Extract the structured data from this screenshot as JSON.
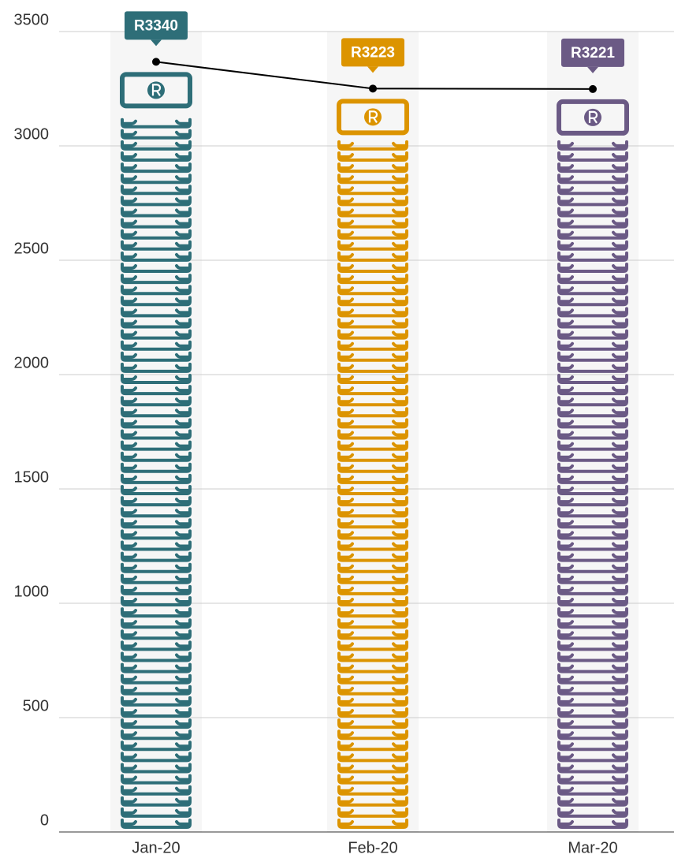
{
  "chart_data": {
    "type": "pictorial-bar",
    "categories": [
      "Jan-20",
      "Feb-20",
      "Mar-20"
    ],
    "values": [
      3340,
      3223,
      3221
    ],
    "value_labels": [
      "R3340",
      "R3223",
      "R3221"
    ],
    "colors": [
      "#2e6e78",
      "#dc9400",
      "#6b5a85"
    ],
    "line_color": "#000000",
    "ylim": [
      0,
      3500
    ],
    "yticks": [
      0,
      500,
      1000,
      1500,
      2000,
      2500,
      3000,
      3500
    ],
    "grid": true
  }
}
